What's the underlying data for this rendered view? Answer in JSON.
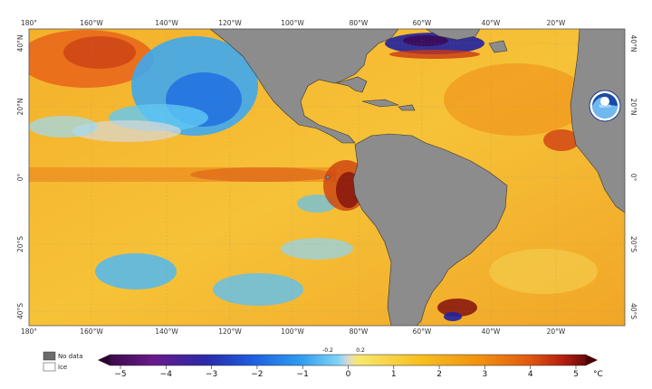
{
  "map": {
    "title": "",
    "lon_labels": [
      "180°",
      "160°W",
      "140°W",
      "120°W",
      "100°W",
      "80°W",
      "60°W",
      "40°W",
      "20°W"
    ],
    "lat_labels_left": [
      "40°N",
      "20°N",
      "0°",
      "20°S",
      "40°S"
    ],
    "lat_labels_right": [
      "40°N",
      "20°N",
      "0°",
      "20°S",
      "40°S"
    ],
    "logo_text": "NOAA"
  },
  "legend": {
    "no_data": "No data",
    "ice": "Ice",
    "no_data_color": "#6b6b6b",
    "ice_color": "#ffffff"
  },
  "colorbar": {
    "ticks": [
      "−5",
      "−4",
      "−3",
      "−2",
      "−1",
      "0",
      "1",
      "2",
      "3",
      "4",
      "5"
    ],
    "small_ticks": [
      "-0.2",
      "0.2"
    ],
    "unit": "°C",
    "stops": [
      "#3a0a4a",
      "#6a1a8a",
      "#2a2aa8",
      "#1e5ee0",
      "#2f9cf0",
      "#7fd4f8",
      "#d8d8d8",
      "#f8e870",
      "#f8c020",
      "#f09010",
      "#e05a10",
      "#b82010",
      "#6a0a0a"
    ]
  }
}
